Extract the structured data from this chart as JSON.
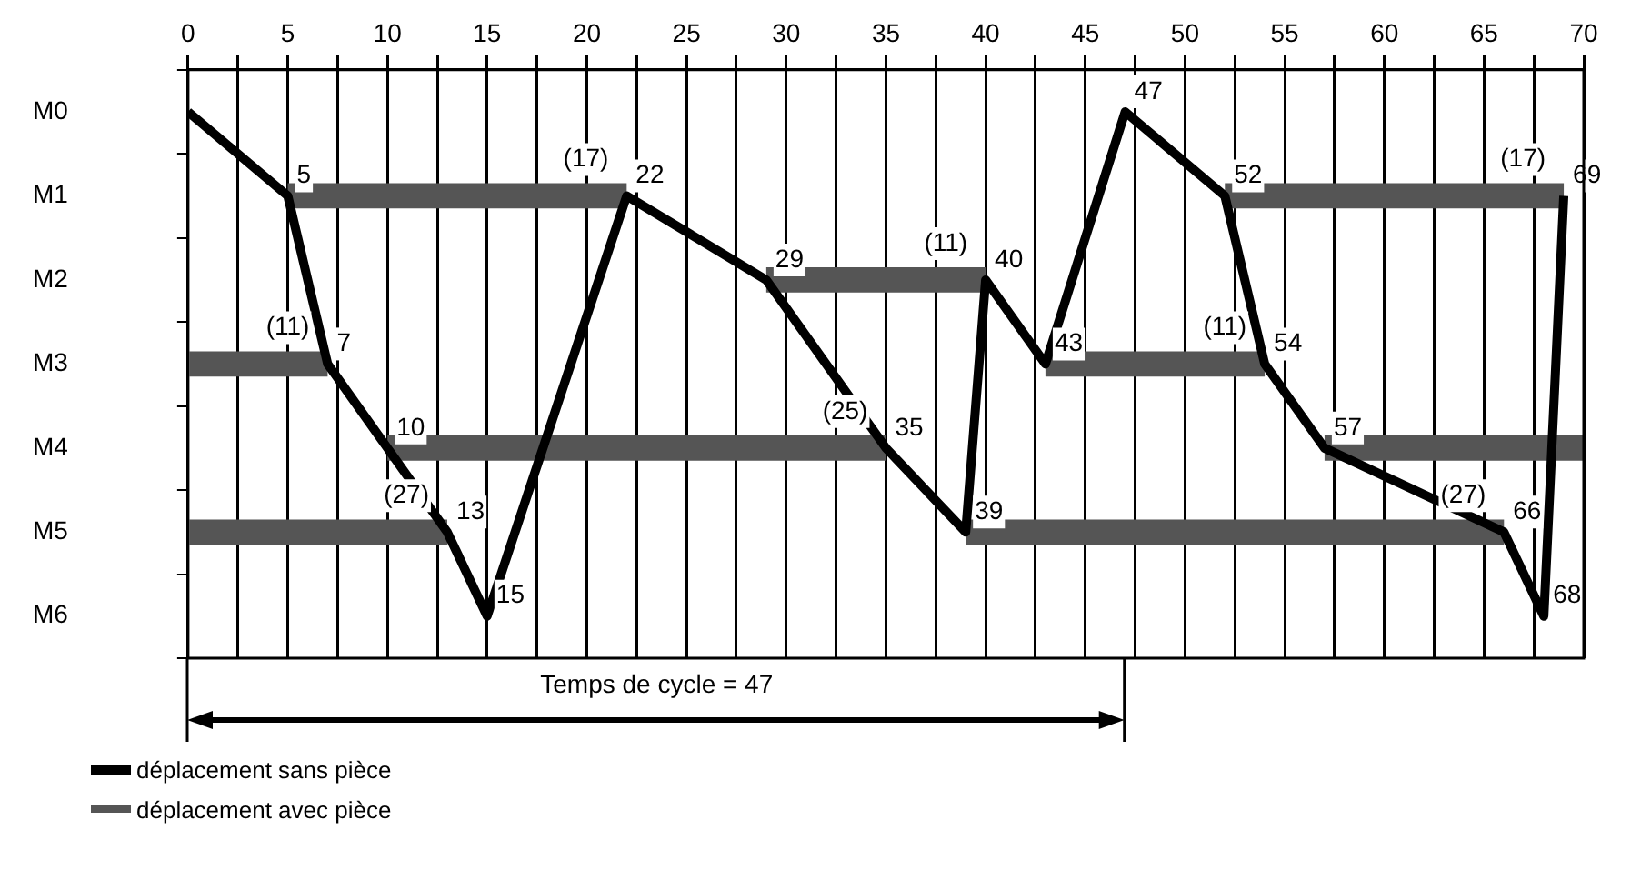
{
  "chart_data": {
    "type": "bar",
    "orientation": "horizontal",
    "categories": [
      "M0",
      "M1",
      "M2",
      "M3",
      "M4",
      "M5",
      "M6"
    ],
    "xlim": [
      0,
      70
    ],
    "xticks": [
      0,
      {
        "value": 2.5,
        "label": null
      },
      5,
      {
        "value": 7.5,
        "label": null
      },
      10,
      {
        "value": 12.5,
        "label": null
      },
      15,
      {
        "value": 17.5,
        "label": null
      },
      20,
      {
        "value": 22.5,
        "label": null
      },
      25,
      {
        "value": 27.5,
        "label": null
      },
      30,
      {
        "value": 32.5,
        "label": null
      },
      35,
      {
        "value": 37.5,
        "label": null
      },
      40,
      {
        "value": 42.5,
        "label": null
      },
      45,
      {
        "value": 47.5,
        "label": null
      },
      50,
      {
        "value": 52.5,
        "label": null
      },
      55,
      {
        "value": 57.5,
        "label": null
      },
      60,
      {
        "value": 62.5,
        "label": null
      },
      65,
      {
        "value": 67.5,
        "label": null
      },
      70
    ],
    "series": [
      {
        "name": "déplacement sans pièce",
        "type": "line",
        "color": "#000000",
        "x": [
          "M0",
          "M1",
          "M3",
          "M4",
          "M5",
          "M6",
          "M1",
          "M2",
          "M4",
          "M5",
          "M2",
          "M3",
          "M0",
          "M1",
          "M3",
          "M4",
          "M5",
          "M6",
          "M1"
        ],
        "values": [
          0,
          5,
          7,
          10,
          13,
          15,
          22,
          29,
          35,
          39,
          40,
          43,
          47,
          52,
          54,
          57,
          66,
          68,
          69
        ],
        "value_labels": [
          null,
          "5",
          "7",
          "10",
          "13",
          "15",
          "22",
          "29",
          "35",
          "39",
          "40",
          "43",
          "47",
          "52",
          "54",
          "57",
          "66",
          "68",
          "69"
        ]
      },
      {
        "name": "déplacement avec pièce",
        "color": "#555555",
        "base": [
          null,
          5,
          29,
          0,
          10,
          0,
          null
        ],
        "values": [
          null,
          17,
          11,
          7,
          25,
          13,
          null
        ]
      },
      {
        "color": "#555555",
        "base": [
          null,
          52,
          null,
          43,
          57,
          39,
          null
        ],
        "values": [
          null,
          17,
          null,
          11,
          13,
          27,
          null
        ]
      }
    ],
    "annotations": [
      {
        "text": "(11)",
        "x": 7,
        "y": "M3"
      },
      {
        "text": "(17)",
        "x": 22,
        "y": "M1"
      },
      {
        "text": "(27)",
        "x": 13,
        "y": "M5"
      },
      {
        "text": "(25)",
        "x": 35,
        "y": "M4"
      },
      {
        "text": "(11)",
        "x": 40,
        "y": "M2"
      },
      {
        "text": "(11)",
        "x": 54,
        "y": "M3"
      },
      {
        "text": "(27)",
        "x": 66,
        "y": "M5"
      },
      {
        "text": "(17)",
        "x": 69,
        "y": "M1"
      },
      "Temps de cycle = 47"
    ],
    "grid": "x",
    "legend": "bottom left",
    "marker": "none",
    "line_style": "solid"
  }
}
